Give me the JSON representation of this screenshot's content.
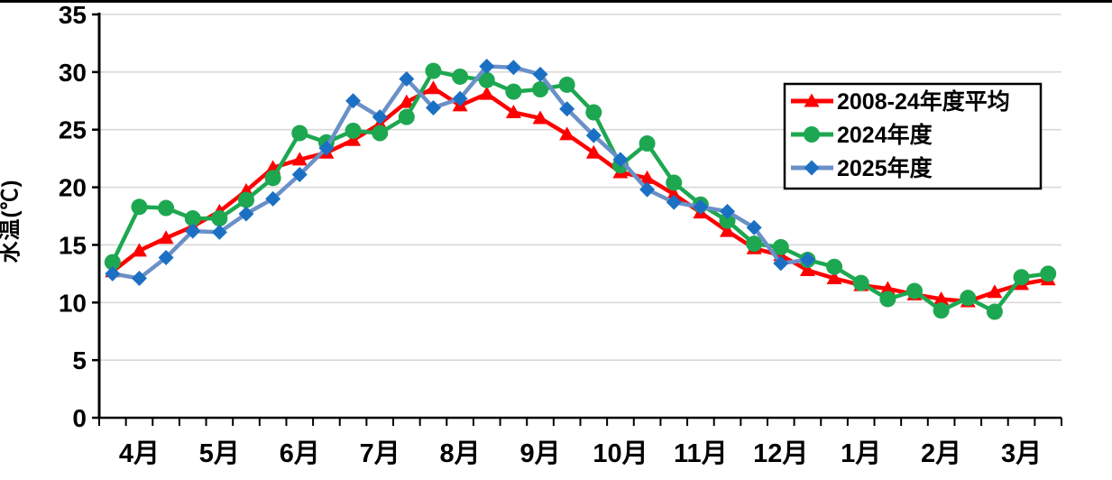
{
  "chart_data": {
    "type": "line",
    "title": "",
    "ylabel": "水温(℃)",
    "ylim": [
      0,
      35
    ],
    "yticks": [
      0,
      5,
      10,
      15,
      20,
      25,
      30,
      35
    ],
    "grid": "horizontal-gray",
    "legend_position": "top-right",
    "months": [
      "4月",
      "5月",
      "6月",
      "7月",
      "8月",
      "9月",
      "10月",
      "11月",
      "12月",
      "1月",
      "2月",
      "3月"
    ],
    "points_per_month": 3,
    "series": [
      {
        "name": "2008-24年度平均",
        "marker": "triangle",
        "color": "#FF0000",
        "line_color": "#FF0000",
        "values": [
          12.7,
          14.5,
          15.6,
          16.6,
          17.9,
          19.7,
          21.7,
          22.4,
          23.0,
          24.1,
          25.5,
          27.4,
          28.6,
          27.1,
          28.1,
          26.5,
          26.0,
          24.6,
          23.0,
          21.3,
          20.8,
          19.4,
          17.8,
          16.2,
          14.7,
          14.1,
          12.8,
          12.1,
          11.5,
          11.2,
          10.7,
          10.3,
          10.1,
          10.9,
          11.6,
          12.0
        ]
      },
      {
        "name": "2024年度",
        "marker": "circle",
        "color": "#1EA751",
        "line_color": "#1EA751",
        "values": [
          13.5,
          18.3,
          18.2,
          17.3,
          17.3,
          18.9,
          20.8,
          24.7,
          23.9,
          24.9,
          24.7,
          26.1,
          30.1,
          29.6,
          29.3,
          28.3,
          28.5,
          28.9,
          26.5,
          21.9,
          23.8,
          20.4,
          18.5,
          17.1,
          15.1,
          14.8,
          13.7,
          13.1,
          11.7,
          10.3,
          11.0,
          9.3,
          10.4,
          9.2,
          12.2,
          12.5
        ]
      },
      {
        "name": "2025年度",
        "marker": "diamond",
        "color": "#1B70C4",
        "line_color": "#6A90C8",
        "values": [
          12.5,
          12.1,
          13.9,
          16.2,
          16.1,
          17.7,
          19.0,
          21.1,
          23.4,
          27.5,
          26.1,
          29.4,
          26.9,
          27.7,
          30.5,
          30.4,
          29.8,
          26.8,
          24.5,
          22.4,
          19.8,
          18.7,
          18.3,
          17.9,
          16.5,
          13.4,
          13.7,
          null,
          null,
          null,
          null,
          null,
          null,
          null,
          null,
          null
        ]
      }
    ]
  }
}
